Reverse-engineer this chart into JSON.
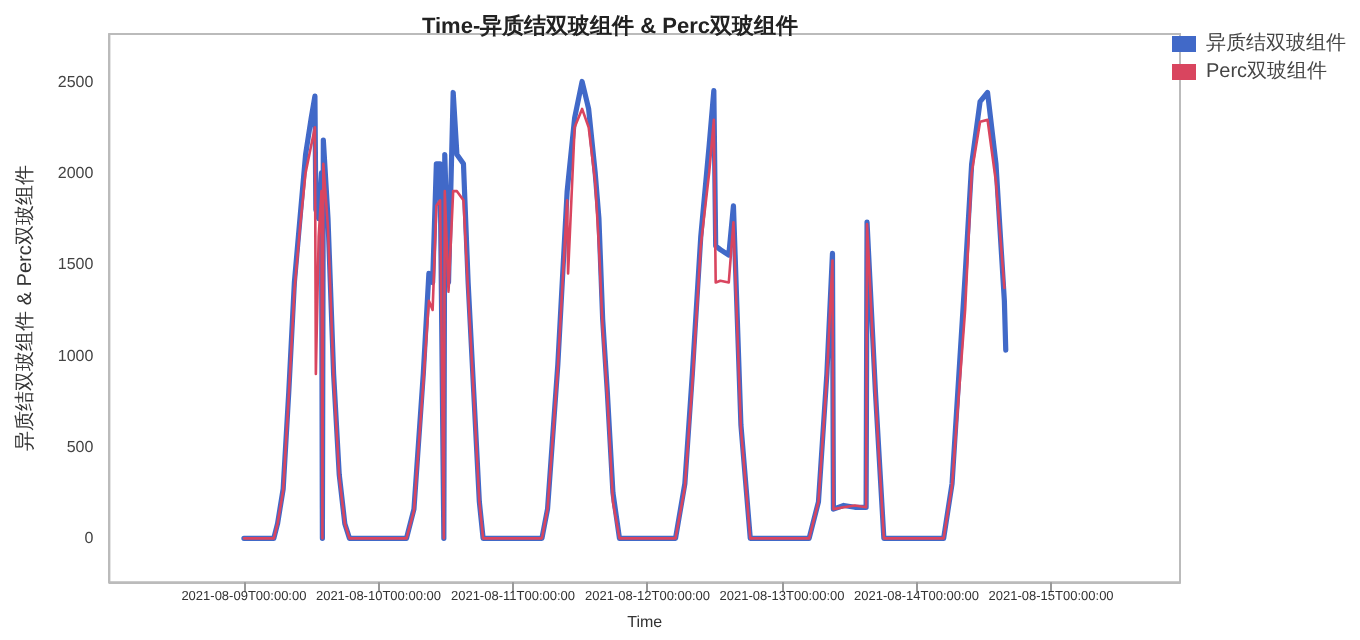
{
  "chart_data": {
    "type": "line",
    "title": "Time-异质结双玻组件 & Perc双玻组件",
    "xlabel": "Time",
    "ylabel": "异质结双玻组件 & Perc双玻组件",
    "legend": "top right",
    "grid": false,
    "marker": "none",
    "line_style": "solid",
    "xlim": [
      "2021-08-08T00:00",
      "2021-08-15T23:00"
    ],
    "xticks": [
      {
        "value": "2021-08-09T00:00",
        "label": "2021-08-09T00:00:00"
      },
      {
        "value": "2021-08-10T00:00",
        "label": "2021-08-10T00:00:00"
      },
      {
        "value": "2021-08-11T00:00",
        "label": "2021-08-11T00:00:00"
      },
      {
        "value": "2021-08-12T00:00",
        "label": "2021-08-12T00:00:00"
      },
      {
        "value": "2021-08-13T00:00",
        "label": "2021-08-13T00:00:00"
      },
      {
        "value": "2021-08-14T00:00",
        "label": "2021-08-14T00:00:00"
      },
      {
        "value": "2021-08-15T00:00",
        "label": "2021-08-15T00:00:00"
      }
    ],
    "ylim": [
      -240,
      2760
    ],
    "yticks": [
      0,
      500,
      1000,
      1500,
      2000,
      2500
    ],
    "x": [
      "2021-08-09T00:00",
      "2021-08-09T05:20",
      "2021-08-09T06:00",
      "2021-08-09T07:00",
      "2021-08-09T08:00",
      "2021-08-09T09:00",
      "2021-08-09T10:00",
      "2021-08-09T11:00",
      "2021-08-09T12:00",
      "2021-08-09T12:40",
      "2021-08-09T12:50",
      "2021-08-09T13:20",
      "2021-08-09T13:50",
      "2021-08-09T14:00",
      "2021-08-09T14:10",
      "2021-08-09T15:00",
      "2021-08-09T16:00",
      "2021-08-09T17:00",
      "2021-08-09T18:00",
      "2021-08-09T18:50",
      "2021-08-10T05:00",
      "2021-08-10T06:20",
      "2021-08-10T08:00",
      "2021-08-10T09:00",
      "2021-08-10T09:40",
      "2021-08-10T10:20",
      "2021-08-10T11:00",
      "2021-08-10T11:40",
      "2021-08-10T11:50",
      "2021-08-10T12:30",
      "2021-08-10T13:20",
      "2021-08-10T14:00",
      "2021-08-10T15:10",
      "2021-08-10T16:00",
      "2021-08-10T17:00",
      "2021-08-10T18:00",
      "2021-08-10T18:40",
      "2021-08-11T05:10",
      "2021-08-11T06:10",
      "2021-08-11T08:00",
      "2021-08-11T09:40",
      "2021-08-11T09:50",
      "2021-08-11T11:00",
      "2021-08-11T12:20",
      "2021-08-11T13:30",
      "2021-08-11T14:40",
      "2021-08-11T15:20",
      "2021-08-11T16:00",
      "2021-08-11T16:50",
      "2021-08-11T17:50",
      "2021-08-11T19:00",
      "2021-08-12T05:00",
      "2021-08-12T06:40",
      "2021-08-12T08:00",
      "2021-08-12T09:30",
      "2021-08-12T11:00",
      "2021-08-12T11:50",
      "2021-08-12T12:10",
      "2021-08-12T13:00",
      "2021-08-12T14:30",
      "2021-08-12T15:20",
      "2021-08-12T16:40",
      "2021-08-12T18:20",
      "2021-08-13T04:50",
      "2021-08-13T06:30",
      "2021-08-13T08:00",
      "2021-08-13T09:00",
      "2021-08-13T09:10",
      "2021-08-13T11:00",
      "2021-08-13T13:00",
      "2021-08-13T15:00",
      "2021-08-13T15:10",
      "2021-08-13T16:40",
      "2021-08-13T18:10",
      "2021-08-14T04:50",
      "2021-08-14T06:20",
      "2021-08-14T08:40",
      "2021-08-14T09:50",
      "2021-08-14T11:20",
      "2021-08-14T12:40",
      "2021-08-14T14:10",
      "2021-08-14T15:40",
      "2021-08-14T15:55"
    ],
    "series": [
      {
        "name": "异质结双玻组件",
        "color": "#4169c8",
        "values": [
          0,
          0,
          80,
          270,
          800,
          1400,
          1750,
          2100,
          2300,
          2420,
          1800,
          1750,
          2000,
          0,
          2180,
          1750,
          900,
          350,
          80,
          0,
          0,
          160,
          900,
          1450,
          1400,
          2050,
          2050,
          0,
          2100,
          1400,
          2440,
          2100,
          2050,
          1400,
          800,
          200,
          0,
          0,
          160,
          950,
          1900,
          1950,
          2300,
          2500,
          2350,
          2000,
          1750,
          1200,
          800,
          250,
          0,
          0,
          300,
          900,
          1650,
          2150,
          2450,
          1600,
          1580,
          1550,
          1820,
          620,
          0,
          0,
          200,
          900,
          1560,
          160,
          180,
          170,
          170,
          1730,
          800,
          0,
          0,
          300,
          1440,
          2050,
          2390,
          2440,
          2050,
          1300,
          1030
        ]
      },
      {
        "name": "Perc双玻组件",
        "color": "#d9455f",
        "values": [
          0,
          0,
          80,
          260,
          780,
          1350,
          1700,
          2000,
          2150,
          2250,
          900,
          1650,
          1900,
          0,
          2050,
          1700,
          880,
          340,
          80,
          0,
          0,
          150,
          850,
          1300,
          1250,
          1820,
          1850,
          0,
          1900,
          1350,
          1900,
          1900,
          1850,
          1350,
          780,
          200,
          0,
          0,
          160,
          930,
          1850,
          1450,
          2250,
          2350,
          2250,
          1950,
          1600,
          1150,
          780,
          200,
          0,
          0,
          280,
          850,
          1600,
          2000,
          2290,
          1400,
          1410,
          1400,
          1730,
          600,
          0,
          0,
          200,
          880,
          1520,
          160,
          170,
          180,
          170,
          1720,
          780,
          0,
          0,
          290,
          1250,
          2000,
          2280,
          2290,
          1950,
          1370,
          null
        ]
      }
    ]
  }
}
